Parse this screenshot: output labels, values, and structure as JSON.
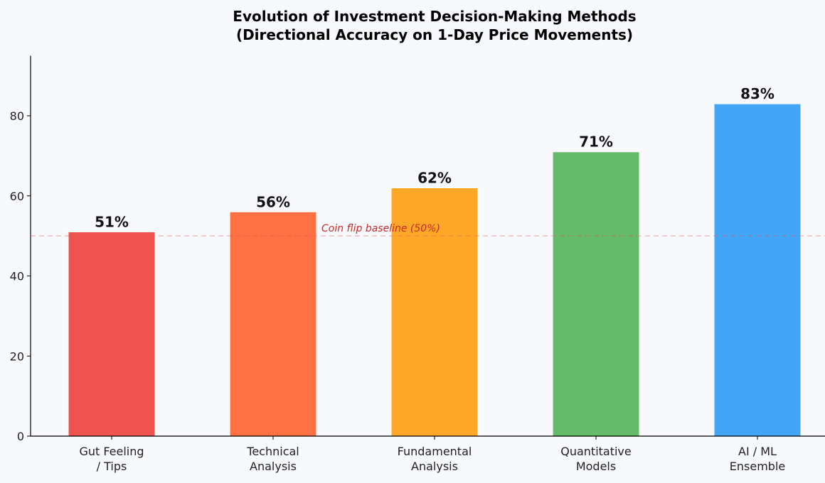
{
  "chart_data": {
    "type": "bar",
    "title_lines": [
      "Evolution of Investment Decision-Making Methods",
      "(Directional Accuracy on 1-Day Price Movements)"
    ],
    "categories": [
      [
        "Gut Feeling",
        "/ Tips"
      ],
      [
        "Technical",
        "Analysis"
      ],
      [
        "Fundamental",
        "Analysis"
      ],
      [
        "Quantitative",
        "Models"
      ],
      [
        "AI / ML",
        "Ensemble"
      ]
    ],
    "values": [
      51,
      56,
      62,
      71,
      83
    ],
    "data_labels": [
      "51%",
      "56%",
      "62%",
      "71%",
      "83%"
    ],
    "colors": [
      "#EF5350",
      "#FF7043",
      "#FFA726",
      "#66BB6A",
      "#42A5F5"
    ],
    "xlabel": "",
    "ylabel": "",
    "ylim": [
      0,
      95
    ],
    "yticks": [
      0,
      20,
      40,
      60,
      80
    ],
    "grid": false,
    "reference_line": {
      "value": 50,
      "label": "Coin flip baseline (50%)",
      "color": "#EF5350",
      "style": "dashed"
    }
  }
}
